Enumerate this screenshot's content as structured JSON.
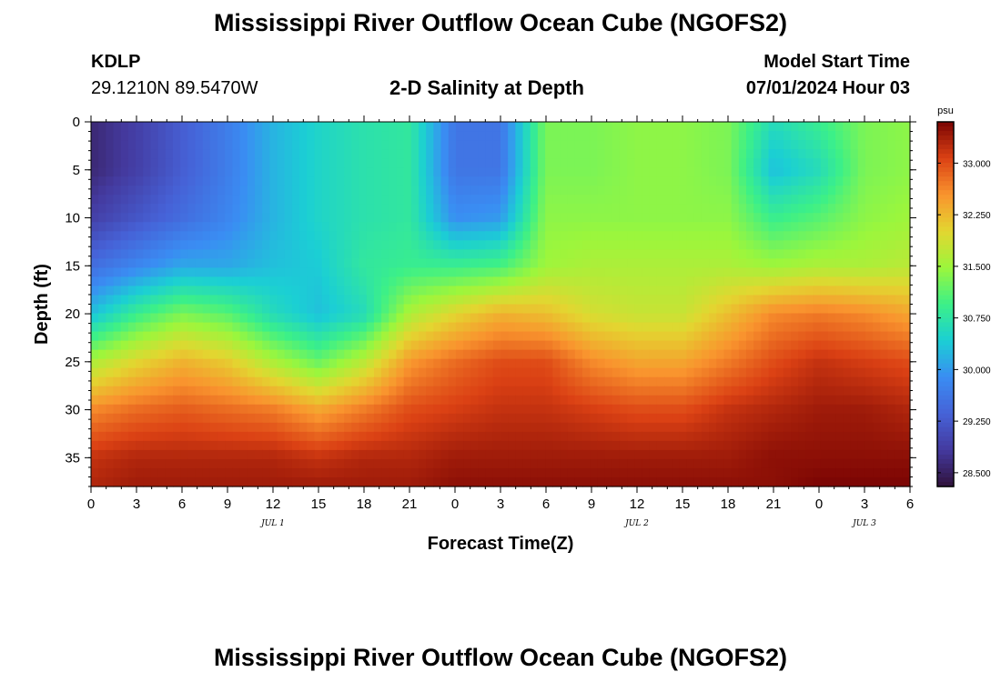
{
  "header": {
    "title": "Mississippi River Outflow Ocean Cube (NGOFS2)",
    "station_id": "KDLP",
    "station_coords": "29.1210N  89.5470W",
    "subtitle": "2-D Salinity at Depth",
    "model_start_label": "Model Start Time",
    "model_start_value": "07/01/2024 Hour 03"
  },
  "footer": {
    "title": "Mississippi River Outflow Ocean Cube (NGOFS2)"
  },
  "chart_data": {
    "type": "heatmap",
    "title": "2-D Salinity at Depth",
    "xlabel": "Forecast Time(Z)",
    "ylabel": "Depth (ft)",
    "x_tick_labels": [
      "0",
      "3",
      "6",
      "9",
      "12",
      "15",
      "18",
      "21",
      "0",
      "3",
      "6",
      "9",
      "12",
      "15",
      "18",
      "21",
      "0",
      "3",
      "6"
    ],
    "x_hours": [
      0,
      3,
      6,
      9,
      12,
      15,
      18,
      21,
      24,
      27,
      30,
      33,
      36,
      39,
      42,
      45,
      48,
      51,
      54
    ],
    "x_date_labels": [
      {
        "label": "JUL 1",
        "hour": 12
      },
      {
        "label": "JUL 2",
        "hour": 36
      },
      {
        "label": "JUL 3",
        "hour": 51
      }
    ],
    "xlim": [
      0,
      54
    ],
    "y_ticks": [
      0,
      5,
      10,
      15,
      20,
      25,
      30,
      35
    ],
    "ylim": [
      0,
      38
    ],
    "y_inverted": true,
    "colorbar": {
      "unit": "psu",
      "ticks": [
        "33.000",
        "32.250",
        "31.500",
        "30.750",
        "30.000",
        "29.250",
        "28.500"
      ],
      "tick_values": [
        33.0,
        32.25,
        31.5,
        30.75,
        30.0,
        29.25,
        28.5
      ],
      "range": [
        28.3,
        33.6
      ]
    },
    "time_hours": [
      0,
      3,
      6,
      9,
      12,
      15,
      18,
      21,
      24,
      27,
      30,
      33,
      36,
      39,
      42,
      45,
      48,
      51,
      54
    ],
    "depths_ft": [
      0,
      5,
      10,
      15,
      20,
      25,
      30,
      35,
      38
    ],
    "salinity_psu": [
      [
        28.6,
        28.9,
        29.3,
        29.7,
        30.2,
        30.5,
        30.7,
        30.8,
        29.6,
        29.6,
        31.3,
        31.3,
        31.4,
        31.4,
        31.3,
        30.6,
        30.9,
        31.3,
        31.4
      ],
      [
        28.6,
        28.9,
        29.3,
        29.7,
        30.2,
        30.5,
        30.7,
        30.8,
        29.6,
        29.6,
        31.3,
        31.3,
        31.4,
        31.4,
        31.3,
        30.3,
        30.6,
        31.3,
        31.4
      ],
      [
        28.9,
        29.2,
        29.5,
        29.8,
        30.2,
        30.5,
        30.7,
        30.8,
        29.9,
        30.0,
        31.4,
        31.4,
        31.4,
        31.4,
        31.4,
        30.9,
        31.1,
        31.4,
        31.5
      ],
      [
        29.5,
        29.8,
        30.1,
        30.1,
        30.3,
        30.4,
        30.8,
        30.9,
        30.9,
        31.0,
        31.5,
        31.6,
        31.6,
        31.6,
        31.6,
        31.5,
        31.6,
        31.6,
        31.7
      ],
      [
        30.3,
        30.9,
        31.3,
        31.1,
        30.6,
        30.3,
        30.6,
        31.6,
        32.0,
        32.3,
        32.2,
        31.9,
        31.8,
        31.8,
        32.2,
        32.6,
        32.7,
        32.6,
        32.4
      ],
      [
        31.6,
        32.0,
        32.3,
        32.1,
        31.6,
        31.2,
        31.7,
        32.5,
        32.8,
        33.0,
        33.0,
        32.6,
        32.4,
        32.4,
        32.7,
        33.0,
        33.2,
        33.1,
        33.0
      ],
      [
        32.6,
        32.8,
        32.9,
        32.8,
        32.7,
        32.4,
        32.7,
        33.0,
        33.1,
        33.2,
        33.2,
        33.1,
        33.0,
        33.0,
        33.2,
        33.3,
        33.4,
        33.4,
        33.3
      ],
      [
        33.2,
        33.3,
        33.3,
        33.3,
        33.3,
        33.2,
        33.3,
        33.3,
        33.4,
        33.4,
        33.4,
        33.4,
        33.4,
        33.4,
        33.4,
        33.5,
        33.5,
        33.5,
        33.5
      ],
      [
        33.3,
        33.4,
        33.4,
        33.4,
        33.4,
        33.4,
        33.4,
        33.4,
        33.5,
        33.5,
        33.5,
        33.5,
        33.5,
        33.5,
        33.5,
        33.5,
        33.6,
        33.6,
        33.6
      ]
    ]
  }
}
